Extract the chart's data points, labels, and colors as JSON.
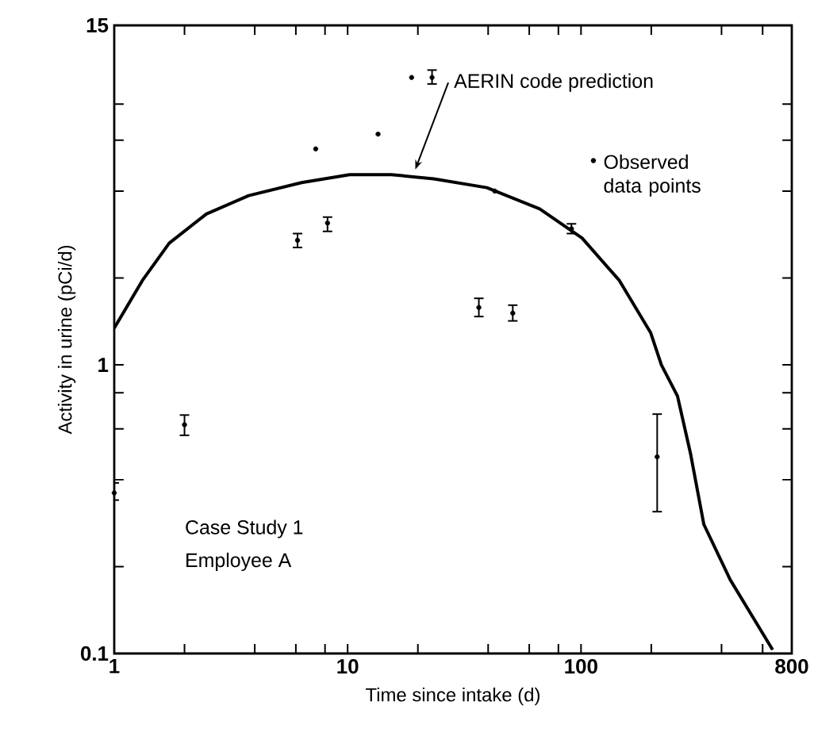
{
  "chart_data": {
    "type": "scatter",
    "xlabel": "Time since intake (d)",
    "ylabel": "Activity in urine (pCi/d)",
    "log": "xy",
    "xlim": [
      1,
      800
    ],
    "ylim": [
      0.1,
      15
    ],
    "xticks": [
      1,
      {
        "value": 2,
        "label": null
      },
      {
        "value": 4,
        "label": null
      },
      {
        "value": 6,
        "label": null
      },
      {
        "value": 8,
        "label": null
      },
      10,
      {
        "value": 20,
        "label": null
      },
      {
        "value": 40,
        "label": null
      },
      {
        "value": 60,
        "label": null
      },
      {
        "value": 80,
        "label": null
      },
      100,
      {
        "value": 200,
        "label": null
      },
      {
        "value": 400,
        "label": null
      },
      {
        "value": 600,
        "label": null
      },
      800
    ],
    "yticks": [
      0.1,
      {
        "value": 0.2,
        "label": null
      },
      {
        "value": 0.4,
        "label": null
      },
      {
        "value": 0.6,
        "label": null
      },
      {
        "value": 0.8,
        "label": null
      },
      1,
      {
        "value": 2,
        "label": null
      },
      {
        "value": 4,
        "label": null
      },
      {
        "value": 6,
        "label": null
      },
      {
        "value": 8,
        "label": null
      },
      15
    ],
    "series": [
      {
        "name": "AERIN code prediction",
        "type": "line",
        "color": "#000000",
        "marker": "none",
        "line_style": "solid",
        "x": [
          1,
          1.32,
          1.72,
          2.48,
          3.77,
          6.35,
          10.2,
          15.4,
          23.4,
          39.5,
          66.5,
          101,
          146,
          199,
          221,
          259,
          295,
          336,
          436,
          662
        ],
        "values": [
          1.34,
          1.96,
          2.64,
          3.33,
          3.86,
          4.28,
          4.56,
          4.56,
          4.41,
          4.11,
          3.47,
          2.75,
          1.96,
          1.29,
          1.0,
          0.78,
          0.49,
          0.28,
          0.18,
          0.103
        ]
      },
      {
        "name": "Observed data points",
        "color": "#000000",
        "marker": "circle",
        "x": [
          1,
          2,
          6.1,
          7.3,
          8.2,
          13.5,
          18.8,
          23,
          36.5,
          42.7,
          51,
          91,
          212
        ],
        "values": [
          0.36,
          0.62,
          2.7,
          5.6,
          3.1,
          6.3,
          9.9,
          9.9,
          1.58,
          4.0,
          1.51,
          2.96,
          0.48
        ],
        "errors": [
          [
            0.34,
            0.39
          ],
          [
            0.57,
            0.67
          ],
          [
            2.55,
            2.85
          ],
          null,
          [
            2.9,
            3.25
          ],
          null,
          null,
          [
            9.4,
            10.5
          ],
          [
            1.47,
            1.7
          ],
          null,
          [
            1.42,
            1.61
          ],
          [
            2.85,
            3.08
          ],
          [
            0.31,
            0.675
          ]
        ]
      }
    ],
    "annotations": [
      "Case Study 1",
      "Employee A"
    ]
  }
}
